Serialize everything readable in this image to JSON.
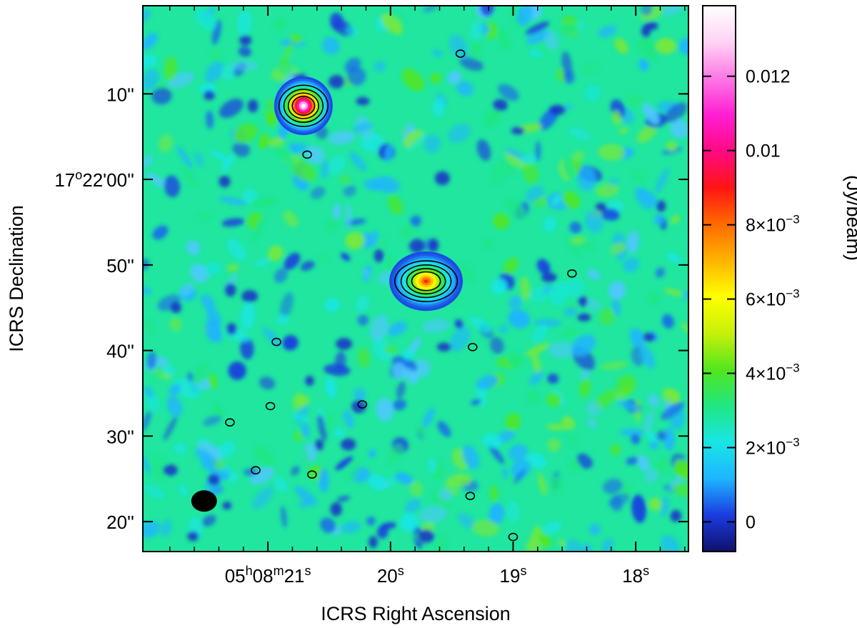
{
  "chart_data": {
    "type": "heatmap",
    "title": "",
    "xlabel": "ICRS Right Ascension",
    "ylabel": "ICRS Declination",
    "x_axis": {
      "ticks": [
        {
          "value_s": 21,
          "label_main": "05",
          "sup1": "h",
          "mid": "08",
          "sup2": "m",
          "tail": "21",
          "sup3": "s"
        },
        {
          "value_s": 20,
          "label_main": "20",
          "sup3": "s"
        },
        {
          "value_s": 19,
          "label_main": "19",
          "sup3": "s"
        },
        {
          "value_s": 18,
          "label_main": "18",
          "sup3": "s"
        }
      ],
      "range_s": [
        22.02,
        17.57
      ],
      "direction": "decreasing to the right"
    },
    "y_axis": {
      "ticks": [
        {
          "value_arcsec": 10,
          "label": "10''"
        },
        {
          "value_arcsec": 0,
          "label_main": "17",
          "sup": "o",
          "tail": "22'00''"
        },
        {
          "value_arcsec": -10,
          "label": "50''"
        },
        {
          "value_arcsec": -20,
          "label": "40''"
        },
        {
          "value_arcsec": -30,
          "label": "30''"
        },
        {
          "value_arcsec": -40,
          "label": "20''"
        }
      ],
      "range_arcsec": [
        -43.5,
        20.3
      ]
    },
    "colorbar": {
      "label": "(Jy/beam)",
      "range": [
        -0.0008,
        0.0139
      ],
      "ticks": [
        {
          "value": 0.012,
          "label": "0.012"
        },
        {
          "value": 0.01,
          "label": "0.01"
        },
        {
          "value": 0.008,
          "label_main": "8×10",
          "exp": "−3"
        },
        {
          "value": 0.006,
          "label_main": "6×10",
          "exp": "−3"
        },
        {
          "value": 0.004,
          "label_main": "4×10",
          "exp": "−3"
        },
        {
          "value": 0.002,
          "label_main": "2×10",
          "exp": "−3"
        },
        {
          "value": 0,
          "label": "0"
        }
      ],
      "colors": [
        "#10106a",
        "#1a3ce0",
        "#1fb4ff",
        "#19e6e6",
        "#20e682",
        "#52e61e",
        "#c8f00a",
        "#ffff00",
        "#ffb400",
        "#ff6a00",
        "#ff1414",
        "#ff0a82",
        "#ff1ed2",
        "#ff78e6",
        "#ffd2f5",
        "#ffffff"
      ]
    },
    "sources": [
      {
        "ra_s": 20.71,
        "dec_arcsec": 8.6,
        "peak_jy_beam": 0.0139
      },
      {
        "ra_s": 19.71,
        "dec_arcsec": -11.9,
        "peak_jy_beam": 0.0088
      }
    ],
    "beam": {
      "ra_s": 21.52,
      "dec_arcsec": -37.6
    },
    "background_color": "#20e6a0",
    "grid": false,
    "legend": "none"
  }
}
